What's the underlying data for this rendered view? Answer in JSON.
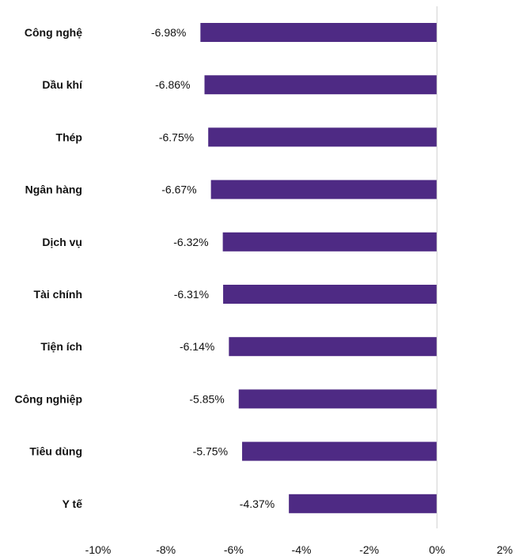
{
  "chart_data": {
    "type": "bar",
    "orientation": "horizontal",
    "categories": [
      "Công nghệ",
      "Dầu khí",
      "Thép",
      "Ngân hàng",
      "Dịch vụ",
      "Tài chính",
      "Tiện ích",
      "Công nghiệp",
      "Tiêu dùng",
      "Y tế"
    ],
    "values": [
      -6.98,
      -6.86,
      -6.75,
      -6.67,
      -6.32,
      -6.31,
      -6.14,
      -5.85,
      -5.75,
      -4.37
    ],
    "value_labels": [
      "-6.98%",
      "-6.86%",
      "-6.75%",
      "-6.67%",
      "-6.32%",
      "-6.31%",
      "-6.14%",
      "-5.85%",
      "-5.75%",
      "-4.37%"
    ],
    "xlim": [
      -10,
      2
    ],
    "x_ticks": [
      -10,
      -8,
      -6,
      -4,
      -2,
      0,
      2
    ],
    "x_tick_labels": [
      "-10%",
      "-8%",
      "-6%",
      "-4%",
      "-2%",
      "0%",
      "2%"
    ],
    "title": "",
    "xlabel": "",
    "ylabel": "",
    "grid": false,
    "bar_color": "#4e2a84",
    "axis_color": "#d0d0d0"
  }
}
